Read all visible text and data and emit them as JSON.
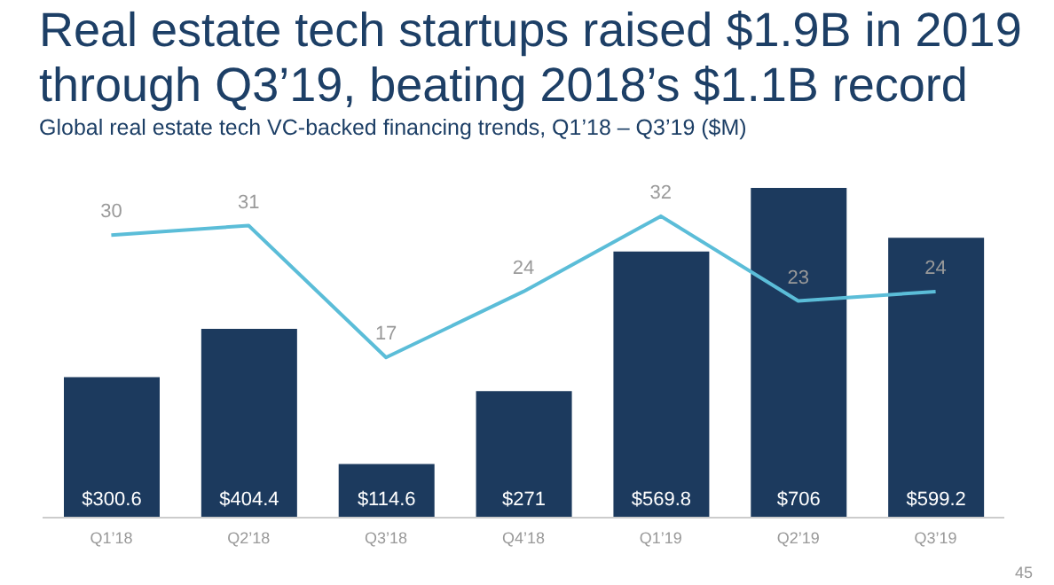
{
  "chart_data": {
    "type": "bar",
    "title": "Real estate tech startups raised $1.9B in 2019 through Q3’19, beating 2018’s $1.1B record",
    "subtitle": "Global real estate tech VC-backed financing trends, Q1’18 – Q3’19 ($M)",
    "categories": [
      "Q1’18",
      "Q2’18",
      "Q3’18",
      "Q4’18",
      "Q1’19",
      "Q2’19",
      "Q3’19"
    ],
    "series": [
      {
        "color": "#1c3a5e",
        "values": [
          300.6,
          404.4,
          114.6,
          271,
          569.8,
          706,
          599.2
        ],
        "value_labels": [
          "$300.6",
          "$404.4",
          "$114.6",
          "$271",
          "$569.8",
          "$706",
          "$599.2"
        ]
      },
      {
        "type": "line",
        "axis": "y2",
        "color": "#5bbdd8",
        "values": [
          30,
          31,
          17,
          24,
          32,
          23,
          24
        ],
        "data_labels": true
      }
    ],
    "ylim": [
      0,
      706
    ],
    "y2lim": [
      0,
      35
    ],
    "tick_labels": "x",
    "marker": "none",
    "line_style": "solid",
    "grid": false,
    "legend": false,
    "annotations": [
      "45"
    ]
  }
}
